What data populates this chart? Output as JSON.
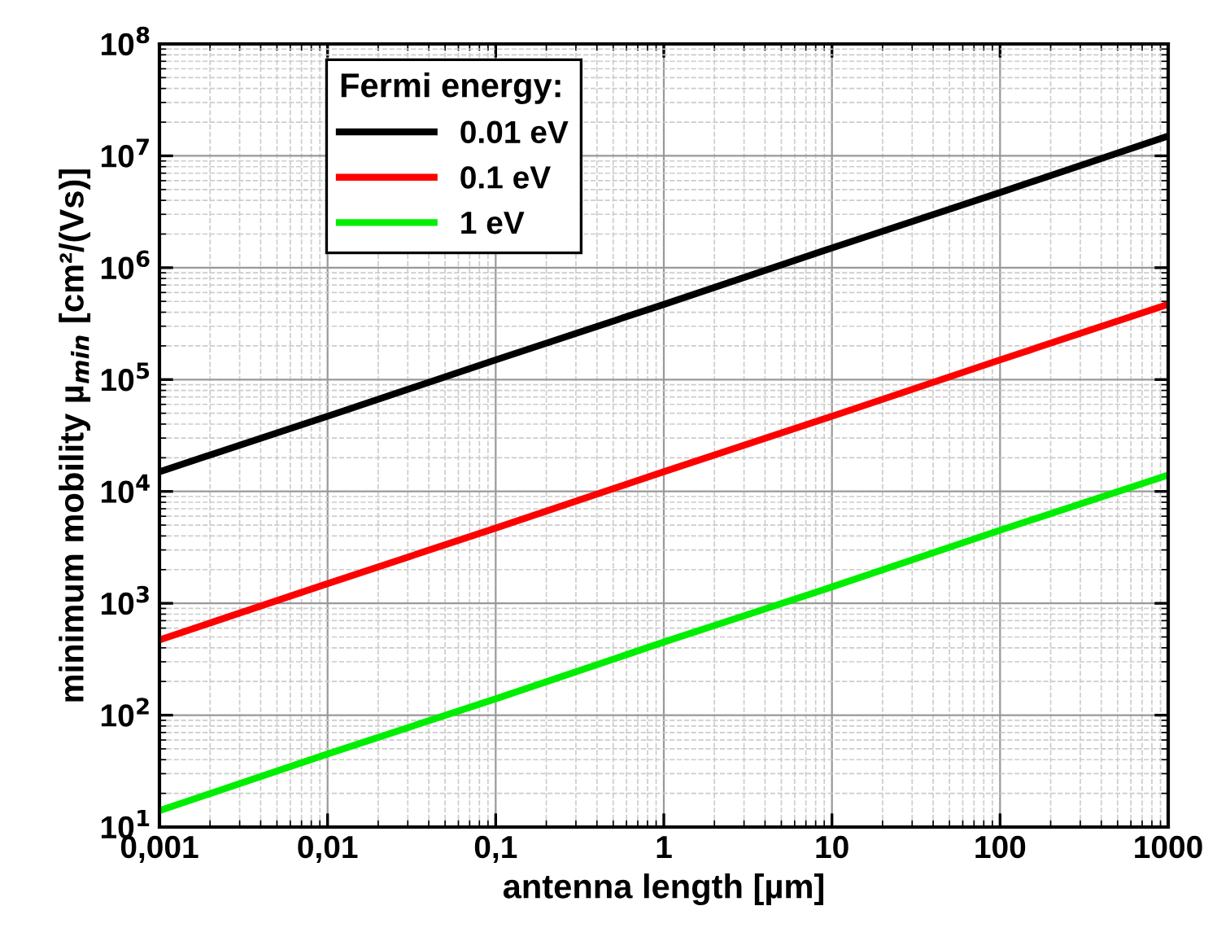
{
  "chart_data": {
    "type": "line",
    "xlabel": "antenna length [µm]",
    "ylabel": "minimum mobility µ$_{min}$ [cm²/(Vs)]",
    "legend_title": "Fermi energy:",
    "log": "xy",
    "grid": true,
    "legend": "top left",
    "line_style": "solid",
    "marker": "none",
    "x": [
      0.001,
      0.01,
      0.1,
      1,
      10,
      100,
      1000
    ],
    "series": [
      {
        "name": "0.01 eV",
        "color": "#000000",
        "values": [
          15000,
          47000,
          150000,
          470000,
          1500000,
          4700000,
          15000000
        ]
      },
      {
        "name": "0.1 eV",
        "color": "#ff0000",
        "values": [
          470,
          1500,
          4700,
          15000,
          47000,
          150000,
          470000
        ]
      },
      {
        "name": "1 eV",
        "color": "#00ee00",
        "values": [
          14,
          45,
          140,
          450,
          1400,
          4500,
          14000
        ]
      }
    ],
    "xlim": [
      0.001,
      1000
    ],
    "xticks": [
      {
        "value": 0.001,
        "label": "0,001"
      },
      {
        "value": 0.01,
        "label": "0,01"
      },
      {
        "value": 0.1,
        "label": "0,1"
      },
      1,
      10,
      100,
      1000
    ],
    "ylim": [
      10,
      100000000
    ],
    "yticks": [
      {
        "value": 10,
        "label": "10$^{1}$"
      },
      {
        "value": 100,
        "label": "10$^{2}$"
      },
      {
        "value": 1000,
        "label": "10$^{3}$"
      },
      {
        "value": 10000,
        "label": "10$^{4}$"
      },
      {
        "value": 100000,
        "label": "10$^{5}$"
      },
      {
        "value": 1000000,
        "label": "10$^{6}$"
      },
      {
        "value": 10000000,
        "label": "10$^{7}$"
      },
      {
        "value": 100000000,
        "label": "10$^{8}$"
      }
    ]
  }
}
